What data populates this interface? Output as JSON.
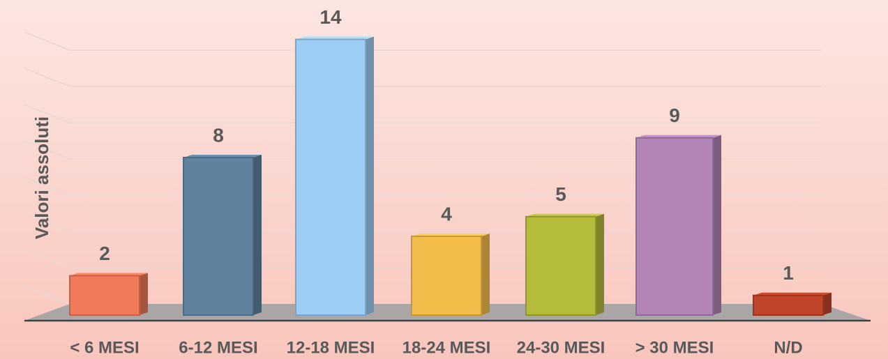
{
  "chart_data": {
    "type": "bar",
    "y_label": "Valori assoluti",
    "categories": [
      "< 6 MESI",
      "6-12 MESI",
      "12-18 MESI",
      "18-24 MESI",
      "24-30 MESI",
      "> 30 MESI",
      "N/D"
    ],
    "values": [
      2,
      8,
      14,
      4,
      5,
      9,
      1
    ],
    "colors": [
      "#f07a5a",
      "#5f839e",
      "#9dcdf4",
      "#f4bd4a",
      "#b5bb3a",
      "#b285b6",
      "#c0442a"
    ],
    "ylim": [
      0,
      16
    ]
  }
}
